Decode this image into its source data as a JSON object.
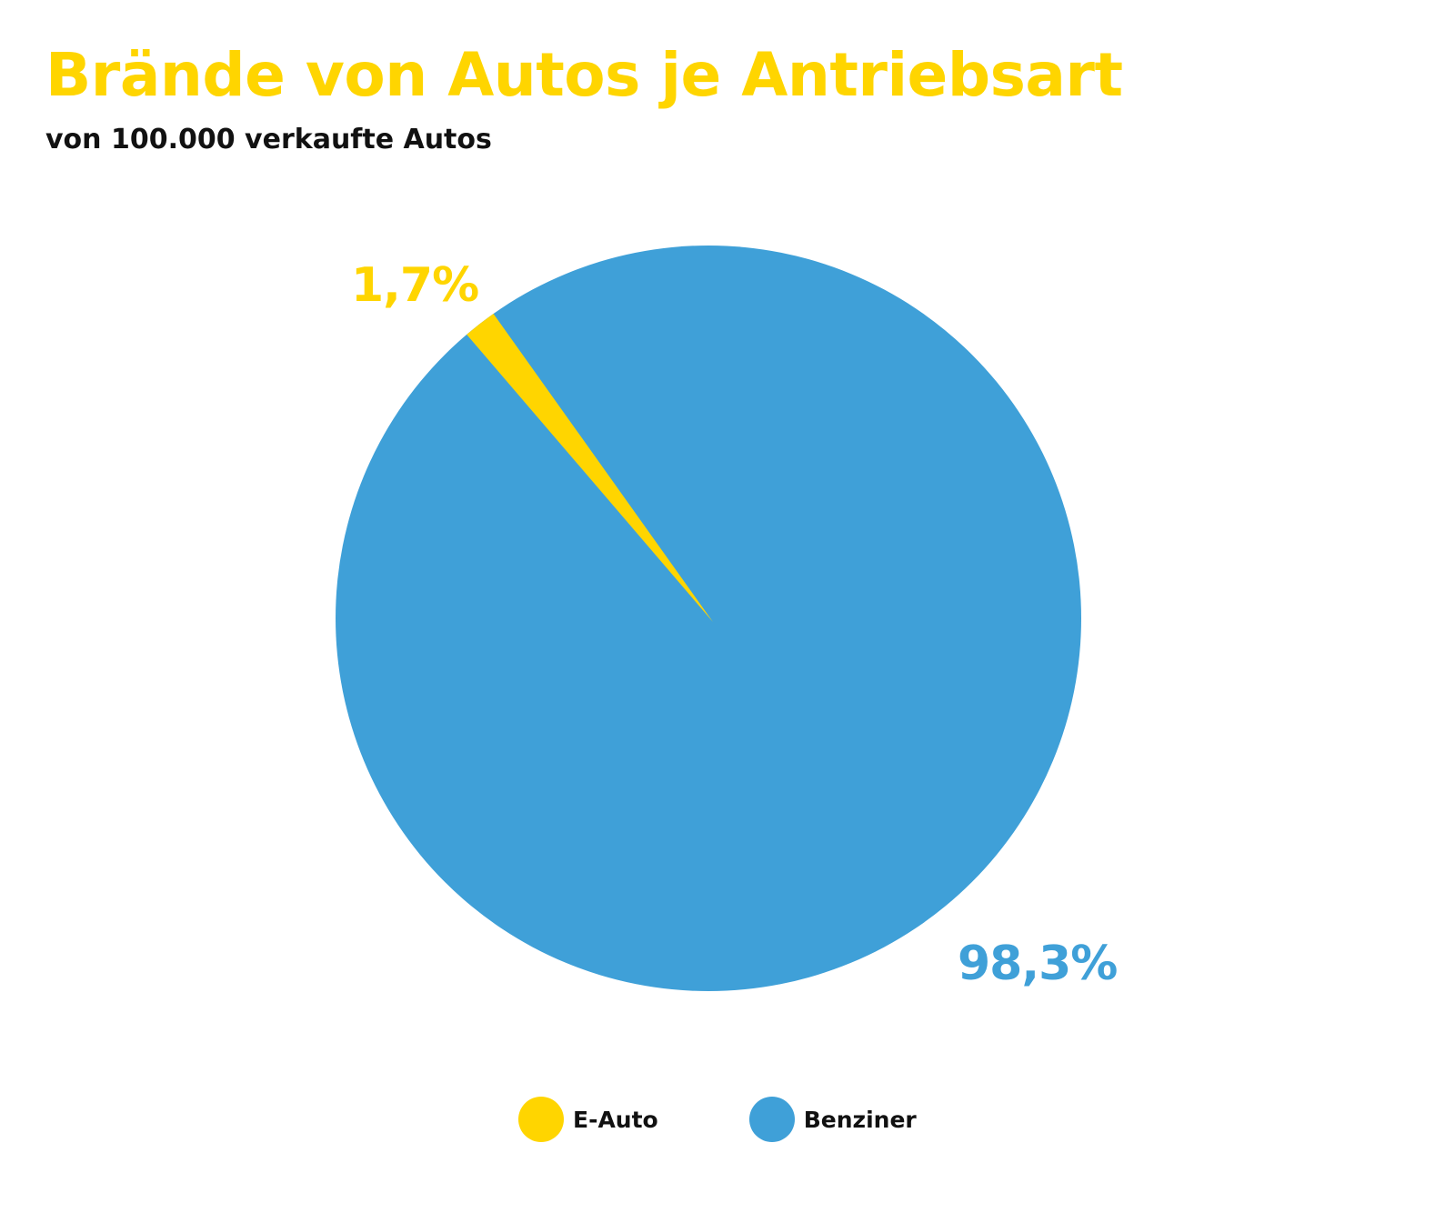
{
  "header": {
    "title": "Brände von Autos je Antriebsart",
    "subtitle": "von 100.000 verkaufte Autos"
  },
  "colors": {
    "e_auto": "#FFD500",
    "benziner": "#3FA0D8",
    "title": "#FFD500",
    "text": "#111111"
  },
  "labels": {
    "e_auto": "1,7%",
    "benziner": "98,3%"
  },
  "legend": [
    {
      "label": "E-Auto",
      "color": "#FFD500"
    },
    {
      "label": "Benziner",
      "color": "#3FA0D8"
    }
  ],
  "chart_data": {
    "type": "pie",
    "title": "Brände von Autos je Antriebsart",
    "subtitle": "von 100.000 verkaufte Autos",
    "categories": [
      "E-Auto",
      "Benziner"
    ],
    "values": [
      1.7,
      98.3
    ],
    "unit": "%",
    "data_labels": [
      "1,7%",
      "98,3%"
    ],
    "colors": [
      "#FFD500",
      "#3FA0D8"
    ],
    "legend_position": "bottom"
  }
}
